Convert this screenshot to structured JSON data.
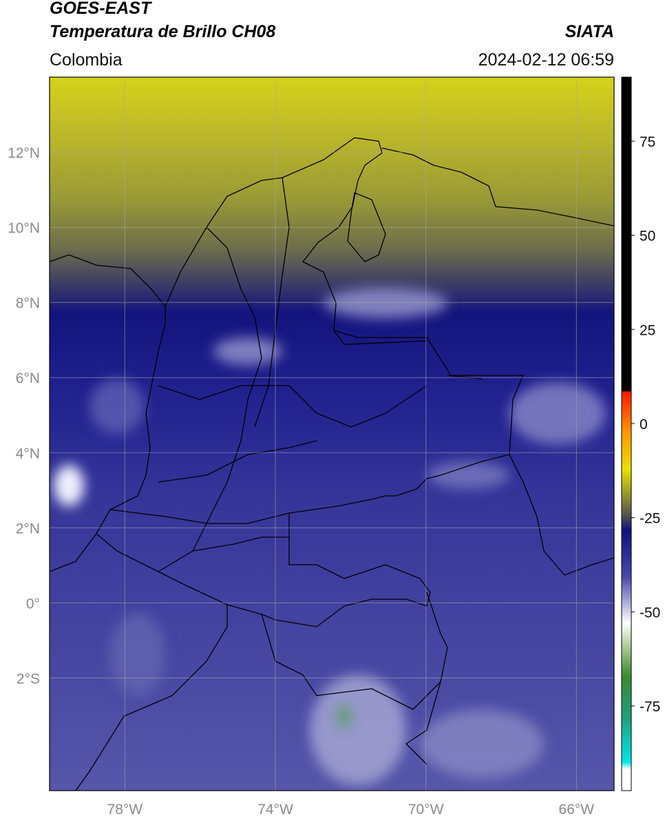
{
  "header": {
    "title": "GOES-EAST",
    "subtitle": "Temperatura de Brillo CH08",
    "source": "SIATA",
    "region": "Colombia",
    "datetime": "2024-02-12 06:59"
  },
  "map": {
    "xlim": [
      -80,
      -65
    ],
    "ylim": [
      -5,
      14
    ],
    "xticks": [
      {
        "value": -78,
        "label": "78°W"
      },
      {
        "value": -74,
        "label": "74°W"
      },
      {
        "value": -70,
        "label": "70°W"
      },
      {
        "value": -66,
        "label": "66°W"
      }
    ],
    "yticks": [
      {
        "value": 12,
        "label": "12°N"
      },
      {
        "value": 10,
        "label": "10°N"
      },
      {
        "value": 8,
        "label": "8°N"
      },
      {
        "value": 6,
        "label": "6°N"
      },
      {
        "value": 4,
        "label": "4°N"
      },
      {
        "value": 2,
        "label": "2°N"
      },
      {
        "value": 0,
        "label": "0°"
      },
      {
        "value": -2,
        "label": "2°S"
      }
    ],
    "grid": true
  },
  "colorbar": {
    "lim": [
      -97.5,
      92
    ],
    "ticks": [
      75,
      50,
      25,
      0,
      -25,
      -50,
      -75
    ]
  }
}
